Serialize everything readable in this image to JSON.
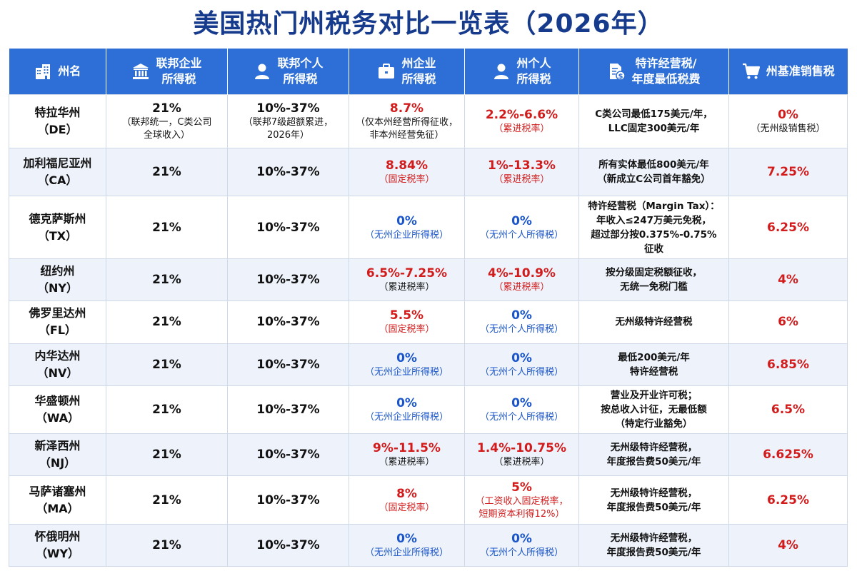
{
  "title": "美国热门州税务对比一览表（2026年）",
  "headers": [
    {
      "icon": "building-icon",
      "label": "州名"
    },
    {
      "icon": "bank-icon",
      "label": "联邦企业\n所得税"
    },
    {
      "icon": "person-icon",
      "label": "联邦个人\n所得税"
    },
    {
      "icon": "briefcase-icon",
      "label": "州企业\n所得税"
    },
    {
      "icon": "person-icon",
      "label": "州个人\n所得税"
    },
    {
      "icon": "document-dollar-icon",
      "label": "特许经营税/\n年度最低税费"
    },
    {
      "icon": "cart-icon",
      "label": "州基准销售税"
    }
  ],
  "rows": [
    {
      "state": "特拉华州\n（DE）",
      "fed_corp": "21%",
      "fed_corp_note": "（联邦统一，C类公司\n全球收入）",
      "fed_ind": "10%-37%",
      "fed_ind_note": "（联邦7级超额累进，\n2026年）",
      "state_corp": "8.7%",
      "state_corp_note": "（仅本州经营所得征收，\n非本州经营免征）",
      "state_corp_color": "red",
      "state_corp_note_color": "black",
      "state_ind": "2.2%-6.6%",
      "state_ind_note": "（累进税率）",
      "state_ind_color": "red",
      "franchise": "C类公司最低175美元/年，\nLLC固定300美元/年",
      "sales": "0%",
      "sales_note": "（无州级销售税）"
    },
    {
      "state": "加利福尼亚州\n（CA）",
      "fed_corp": "21%",
      "fed_corp_note": "",
      "fed_ind": "10%-37%",
      "fed_ind_note": "",
      "state_corp": "8.84%",
      "state_corp_note": "（固定税率）",
      "state_corp_color": "red",
      "state_corp_note_color": "red",
      "state_ind": "1%-13.3%",
      "state_ind_note": "（累进税率）",
      "state_ind_color": "red",
      "franchise": "所有实体最低800美元/年\n（新成立C公司首年豁免）",
      "sales": "7.25%",
      "sales_note": ""
    },
    {
      "state": "德克萨斯州\n（TX）",
      "fed_corp": "21%",
      "fed_corp_note": "",
      "fed_ind": "10%-37%",
      "fed_ind_note": "",
      "state_corp": "0%",
      "state_corp_note": "（无州企业所得税）",
      "state_corp_color": "blue",
      "state_corp_note_color": "blue",
      "state_ind": "0%",
      "state_ind_note": "（无州个人所得税）",
      "state_ind_color": "blue",
      "franchise": "特许经营税（Margin Tax）：\n年收入≤247万美元免税，\n超过部分按0.375%-0.75%\n征收",
      "sales": "6.25%",
      "sales_note": ""
    },
    {
      "state": "纽约州\n（NY）",
      "fed_corp": "21%",
      "fed_corp_note": "",
      "fed_ind": "10%-37%",
      "fed_ind_note": "",
      "state_corp": "6.5%-7.25%",
      "state_corp_note": "（累进税率）",
      "state_corp_color": "red",
      "state_corp_note_color": "black",
      "state_ind": "4%-10.9%",
      "state_ind_note": "（累进税率）",
      "state_ind_color": "red",
      "franchise": "按分级固定税额征收，\n无统一免税门槛",
      "sales": "4%",
      "sales_note": ""
    },
    {
      "state": "佛罗里达州\n（FL）",
      "fed_corp": "21%",
      "fed_corp_note": "",
      "fed_ind": "10%-37%",
      "fed_ind_note": "",
      "state_corp": "5.5%",
      "state_corp_note": "（固定税率）",
      "state_corp_color": "red",
      "state_corp_note_color": "red",
      "state_ind": "0%",
      "state_ind_note": "（无州个人所得税）",
      "state_ind_color": "blue",
      "franchise": "无州级特许经营税",
      "sales": "6%",
      "sales_note": ""
    },
    {
      "state": "内华达州\n（NV）",
      "fed_corp": "21%",
      "fed_corp_note": "",
      "fed_ind": "10%-37%",
      "fed_ind_note": "",
      "state_corp": "0%",
      "state_corp_note": "（无州企业所得税）",
      "state_corp_color": "blue",
      "state_corp_note_color": "blue",
      "state_ind": "0%",
      "state_ind_note": "（无州个人所得税）",
      "state_ind_color": "blue",
      "franchise": "最低200美元/年\n特许经营税",
      "sales": "6.85%",
      "sales_note": ""
    },
    {
      "state": "华盛顿州\n（WA）",
      "fed_corp": "21%",
      "fed_corp_note": "",
      "fed_ind": "10%-37%",
      "fed_ind_note": "",
      "state_corp": "0%",
      "state_corp_note": "（无州企业所得税）",
      "state_corp_color": "blue",
      "state_corp_note_color": "blue",
      "state_ind": "0%",
      "state_ind_note": "（无州个人所得税）",
      "state_ind_color": "blue",
      "franchise": "营业及开业许可税；\n按总收入计征，无最低额\n（特定行业豁免）",
      "sales": "6.5%",
      "sales_note": ""
    },
    {
      "state": "新泽西州\n（NJ）",
      "fed_corp": "21%",
      "fed_corp_note": "",
      "fed_ind": "10%-37%",
      "fed_ind_note": "",
      "state_corp": "9%-11.5%",
      "state_corp_note": "（累进税率）",
      "state_corp_color": "red",
      "state_corp_note_color": "black",
      "state_ind": "1.4%-10.75%",
      "state_ind_note": "（累进税率）",
      "state_ind_color": "red",
      "state_ind_note_color": "black",
      "franchise": "无州级特许经营税，\n年度报告费50美元/年",
      "sales": "6.625%",
      "sales_note": ""
    },
    {
      "state": "马萨诸塞州\n（MA）",
      "fed_corp": "21%",
      "fed_corp_note": "",
      "fed_ind": "10%-37%",
      "fed_ind_note": "",
      "state_corp": "8%",
      "state_corp_note": "（固定税率）",
      "state_corp_color": "red",
      "state_corp_note_color": "red",
      "state_ind": "5%",
      "state_ind_note": "（工资收入固定税率，\n短期资本利得12%）",
      "state_ind_color": "red",
      "franchise": "无州级特许经营税，\n年度报告费50美元/年",
      "sales": "6.25%",
      "sales_note": ""
    },
    {
      "state": "怀俄明州\n（WY）",
      "fed_corp": "21%",
      "fed_corp_note": "",
      "fed_ind": "10%-37%",
      "fed_ind_note": "",
      "state_corp": "0%",
      "state_corp_note": "（无州企业所得税）",
      "state_corp_color": "blue",
      "state_corp_note_color": "blue",
      "state_ind": "0%",
      "state_ind_note": "（无州个人所得税）",
      "state_ind_color": "blue",
      "franchise": "无州级特许经营税，\n年度报告费50美元/年",
      "sales": "4%",
      "sales_note": ""
    }
  ]
}
